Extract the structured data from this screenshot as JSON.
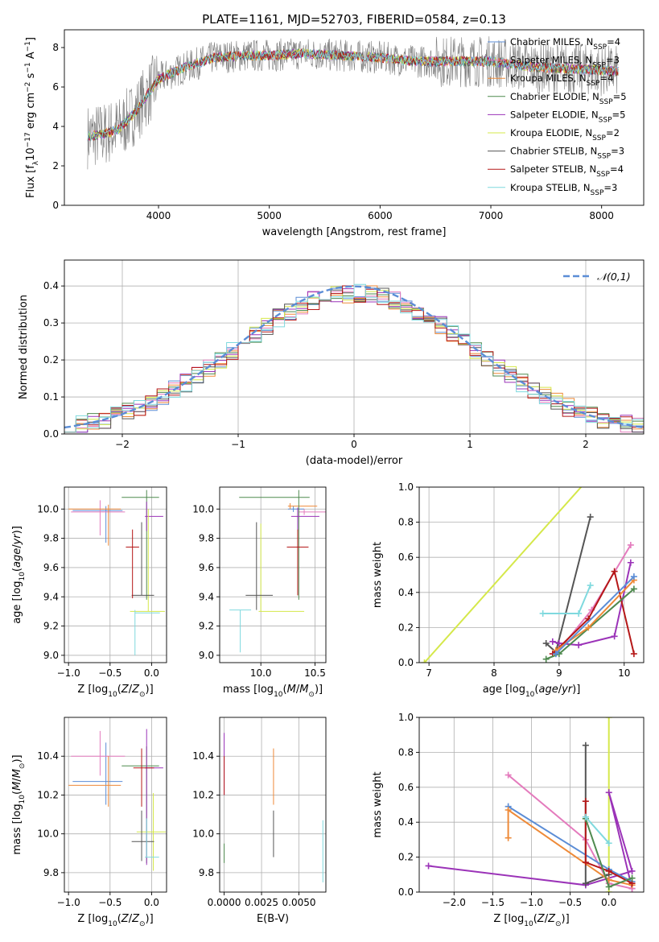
{
  "title": "PLATE=1161, MJD=52703, FIBERID=0584, z=0.13",
  "colors": {
    "Chabrier MILES": "#5b8dd6",
    "Salpeter MILES": "#e47bbd",
    "Kroupa MILES": "#ee8a38",
    "Chabrier ELODIE": "#4f8a4f",
    "Salpeter ELODIE": "#9b33b8",
    "Kroupa ELODIE": "#d5e84a",
    "Chabrier STELIB": "#555555",
    "Salpeter STELIB": "#b51818",
    "Kroupa STELIB": "#7fd9de",
    "normal": "#5b8dd6",
    "grid": "#b0b0b0"
  },
  "chart_data": [
    {
      "type": "line",
      "title": "PLATE=1161, MJD=52703, FIBERID=0584, z=0.13",
      "xlabel": "wavelength [Angstrom, rest frame]",
      "ylabel": "Flux [f_λ10^-17 erg cm^-2 s^-1 A^-1]",
      "xlim": [
        3150,
        8380
      ],
      "ylim": [
        0,
        8.9
      ],
      "xticks": [
        4000,
        5000,
        6000,
        7000,
        8000
      ],
      "yticks": [
        0,
        2,
        4,
        6,
        8
      ],
      "grid": false,
      "legend_position": "right",
      "legend": [
        "Chabrier MILES, N_SSP=4",
        "Salpeter MILES, N_SSP=3",
        "Kroupa MILES, N_SSP=4",
        "Chabrier ELODIE, N_SSP=5",
        "Salpeter ELODIE, N_SSP=5",
        "Kroupa ELODIE, N_SSP=2",
        "Chabrier STELIB, N_SSP=3",
        "Salpeter STELIB, N_SSP=4",
        "Kroupa STELIB, N_SSP=3"
      ],
      "model_continuum": {
        "wavelength": [
          3360,
          3500,
          3650,
          3800,
          4000,
          4200,
          4500,
          4800,
          5000,
          5300,
          5600,
          6000,
          6300,
          6600,
          7000,
          7400,
          7800,
          8150
        ],
        "flux": [
          3.5,
          3.6,
          3.9,
          4.8,
          6.4,
          6.9,
          7.5,
          7.6,
          7.6,
          7.7,
          7.6,
          7.5,
          7.3,
          7.3,
          7.3,
          7.0,
          6.9,
          6.8
        ]
      },
      "data_noise_amplitude": 1.2
    },
    {
      "type": "line",
      "xlabel": "(data-model)/error",
      "ylabel": "Normed distribution",
      "xlim": [
        -2.5,
        2.5
      ],
      "ylim": [
        0,
        0.47
      ],
      "xticks": [
        -2,
        -1,
        0,
        1,
        2
      ],
      "yticks": [
        0.0,
        0.1,
        0.2,
        0.3,
        0.4
      ],
      "grid": true,
      "legend": [
        "𝒩(0,1)"
      ],
      "legend_position": "top-right",
      "reference": "standard normal pdf",
      "histogram_bins": {
        "start": -2.5,
        "width": 0.1,
        "count": 50
      }
    },
    {
      "type": "scatter",
      "xlabel": "Z [log10(Z/Z☉)]",
      "ylabel": "age  [log10(age/yr)]",
      "xlim": [
        -1.05,
        0.18
      ],
      "ylim": [
        8.95,
        10.15
      ],
      "xticks": [
        -1.0,
        -0.5,
        0.0
      ],
      "yticks": [
        9.0,
        9.2,
        9.4,
        9.6,
        9.8,
        10.0
      ],
      "points": [
        {
          "series": "Chabrier MILES",
          "x": -0.55,
          "xerr": [
            0.4,
            0.2
          ],
          "y": 9.99,
          "yerr": [
            0.22,
            0.03
          ]
        },
        {
          "series": "Salpeter MILES",
          "x": -0.62,
          "xerr": [
            0.35,
            0.3
          ],
          "y": 9.98,
          "yerr": [
            0.16,
            0.08
          ]
        },
        {
          "series": "Kroupa MILES",
          "x": -0.52,
          "xerr": [
            0.48,
            0.15
          ],
          "y": 10.0,
          "yerr": [
            0.25,
            0.03
          ]
        },
        {
          "series": "Chabrier ELODIE",
          "x": -0.06,
          "xerr": [
            0.3,
            0.15
          ],
          "y": 10.08,
          "yerr": [
            0.7,
            0.05
          ]
        },
        {
          "series": "Salpeter ELODIE",
          "x": -0.06,
          "xerr": [
            0.02,
            0.2
          ],
          "y": 9.95,
          "yerr": [
            0.1,
            0.1
          ]
        },
        {
          "series": "Kroupa ELODIE",
          "x": -0.04,
          "xerr": [
            0.22,
            0.2
          ],
          "y": 9.3,
          "yerr": [
            0.0,
            0.7
          ]
        },
        {
          "series": "Chabrier STELIB",
          "x": -0.12,
          "xerr": [
            0.12,
            0.15
          ],
          "y": 9.41,
          "yerr": [
            0.0,
            0.5
          ]
        },
        {
          "series": "Salpeter STELIB",
          "x": -0.23,
          "xerr": [
            0.08,
            0.08
          ],
          "y": 9.74,
          "yerr": [
            0.35,
            0.12
          ]
        },
        {
          "series": "Kroupa STELIB",
          "x": -0.2,
          "xerr": [
            0.0,
            0.3
          ],
          "y": 9.29,
          "yerr": [
            0.29,
            0.02
          ]
        }
      ]
    },
    {
      "type": "scatter",
      "xlabel": "mass [log10(M/M☉)]",
      "xlim": [
        9.62,
        10.6
      ],
      "ylim": [
        8.95,
        10.15
      ],
      "xticks": [
        10.0,
        10.5
      ],
      "yticks": [
        9.0,
        9.2,
        9.4,
        9.6,
        9.8,
        10.0
      ],
      "points": [
        {
          "series": "Chabrier MILES",
          "x": 10.3,
          "xerr": [
            0.05,
            0.1
          ],
          "y": 10.0,
          "yerr": [
            0.02,
            0.02
          ]
        },
        {
          "series": "Salpeter MILES",
          "x": 10.4,
          "xerr": [
            0.05,
            0.2
          ],
          "y": 9.98,
          "yerr": [
            0.02,
            0.02
          ]
        },
        {
          "series": "Kroupa MILES",
          "x": 10.27,
          "xerr": [
            0.02,
            0.25
          ],
          "y": 10.02,
          "yerr": [
            0.02,
            0.02
          ]
        },
        {
          "series": "Chabrier ELODIE",
          "x": 10.35,
          "xerr": [
            0.55,
            0.1
          ],
          "y": 10.08,
          "yerr": [
            0.7,
            0.05
          ]
        },
        {
          "series": "Salpeter ELODIE",
          "x": 10.34,
          "xerr": [
            0.06,
            0.2
          ],
          "y": 9.95,
          "yerr": [
            0.1,
            0.06
          ]
        },
        {
          "series": "Kroupa ELODIE",
          "x": 10.0,
          "xerr": [
            0.02,
            0.4
          ],
          "y": 9.3,
          "yerr": [
            0.0,
            0.6
          ]
        },
        {
          "series": "Chabrier STELIB",
          "x": 9.96,
          "xerr": [
            0.1,
            0.15
          ],
          "y": 9.41,
          "yerr": [
            0.1,
            0.5
          ]
        },
        {
          "series": "Salpeter STELIB",
          "x": 10.34,
          "xerr": [
            0.1,
            0.1
          ],
          "y": 9.74,
          "yerr": [
            0.33,
            0.12
          ]
        },
        {
          "series": "Kroupa STELIB",
          "x": 9.81,
          "xerr": [
            0.1,
            0.1
          ],
          "y": 9.31,
          "yerr": [
            0.29,
            0.0
          ]
        }
      ]
    },
    {
      "type": "line",
      "xlabel": "age  [log10(age/yr)]",
      "ylabel": "mass weight",
      "xlim": [
        6.85,
        10.3
      ],
      "ylim": [
        0,
        1.0
      ],
      "xticks": [
        7,
        8,
        9,
        10
      ],
      "yticks": [
        0.0,
        0.2,
        0.4,
        0.6,
        0.8,
        1.0
      ],
      "grid": true,
      "series": [
        {
          "name": "Kroupa ELODIE",
          "points": [
            [
              6.93,
              0.0
            ],
            [
              10.3,
              1.4
            ]
          ]
        },
        {
          "name": "Chabrier STELIB",
          "points": [
            [
              8.8,
              0.11
            ],
            [
              8.95,
              0.06
            ],
            [
              9.48,
              0.83
            ]
          ]
        },
        {
          "name": "Salpeter MILES",
          "points": [
            [
              8.95,
              0.05
            ],
            [
              9.5,
              0.3
            ],
            [
              10.1,
              0.67
            ]
          ]
        },
        {
          "name": "Kroupa STELIB",
          "points": [
            [
              8.75,
              0.28
            ],
            [
              9.3,
              0.28
            ],
            [
              9.48,
              0.44
            ]
          ]
        },
        {
          "name": "Salpeter ELODIE",
          "points": [
            [
              8.9,
              0.12
            ],
            [
              9.0,
              0.11
            ],
            [
              9.3,
              0.1
            ],
            [
              9.85,
              0.15
            ],
            [
              10.1,
              0.57
            ]
          ]
        },
        {
          "name": "Salpeter STELIB",
          "points": [
            [
              8.9,
              0.05
            ],
            [
              9.45,
              0.25
            ],
            [
              9.85,
              0.52
            ],
            [
              10.15,
              0.05
            ]
          ]
        },
        {
          "name": "Chabrier ELODIE",
          "points": [
            [
              8.8,
              0.02
            ],
            [
              9.0,
              0.05
            ],
            [
              10.15,
              0.42
            ]
          ]
        },
        {
          "name": "Kroupa MILES",
          "points": [
            [
              8.95,
              0.07
            ],
            [
              9.45,
              0.2
            ],
            [
              10.15,
              0.47
            ]
          ]
        },
        {
          "name": "Chabrier MILES",
          "points": [
            [
              8.95,
              0.05
            ],
            [
              10.15,
              0.49
            ]
          ]
        }
      ]
    },
    {
      "type": "scatter",
      "xlabel": "Z [log10(Z/Z☉)]",
      "ylabel": "mass [log10(M/M☉)]",
      "xlim": [
        -1.05,
        0.18
      ],
      "ylim": [
        9.7,
        10.6
      ],
      "xticks": [
        -1.0,
        -0.5,
        0.0
      ],
      "yticks": [
        9.8,
        10.0,
        10.2,
        10.4
      ],
      "points": [
        {
          "series": "Chabrier MILES",
          "x": -0.55,
          "xerr": [
            0.4,
            0.2
          ],
          "y": 10.27,
          "yerr": [
            0.12,
            0.2
          ]
        },
        {
          "series": "Salpeter MILES",
          "x": -0.62,
          "xerr": [
            0.35,
            0.3
          ],
          "y": 10.4,
          "yerr": [
            0.1,
            0.13
          ]
        },
        {
          "series": "Kroupa MILES",
          "x": -0.52,
          "xerr": [
            0.48,
            0.15
          ],
          "y": 10.25,
          "yerr": [
            0.11,
            0.15
          ]
        },
        {
          "series": "Chabrier ELODIE",
          "x": -0.06,
          "xerr": [
            0.3,
            0.15
          ],
          "y": 10.35,
          "yerr": [
            0.5,
            0.1
          ]
        },
        {
          "series": "Salpeter ELODIE",
          "x": -0.06,
          "xerr": [
            0.02,
            0.2
          ],
          "y": 10.34,
          "yerr": [
            0.5,
            0.2
          ]
        },
        {
          "series": "Kroupa ELODIE",
          "x": 0.02,
          "xerr": [
            0.2,
            0.15
          ],
          "y": 10.01,
          "yerr": [
            0.2,
            0.2
          ]
        },
        {
          "series": "Chabrier STELIB",
          "x": -0.12,
          "xerr": [
            0.12,
            0.15
          ],
          "y": 9.96,
          "yerr": [
            0.1,
            0.16
          ]
        },
        {
          "series": "Salpeter STELIB",
          "x": -0.12,
          "xerr": [
            0.1,
            0.15
          ],
          "y": 10.34,
          "yerr": [
            0.2,
            0.1
          ]
        },
        {
          "series": "Kroupa STELIB",
          "x": -0.06,
          "xerr": [
            0.02,
            0.15
          ],
          "y": 9.88,
          "yerr": [
            0.0,
            0.2
          ]
        }
      ]
    },
    {
      "type": "scatter",
      "xlabel": "E(B-V)",
      "xlim": [
        -0.0003,
        0.0068
      ],
      "ylim": [
        9.7,
        10.6
      ],
      "xticks": [
        0.0,
        0.0025,
        0.005
      ],
      "xticklabels": [
        "0.0000",
        "0.0025",
        "0.0050"
      ],
      "yticks": [
        9.8,
        10.0,
        10.2,
        10.4
      ],
      "points": [
        {
          "series": "Salpeter ELODIE",
          "x": 0.0,
          "y": 10.4,
          "yerr": [
            0.2,
            0.12
          ]
        },
        {
          "series": "Salpeter STELIB",
          "x": 0.0,
          "y": 10.3,
          "yerr": [
            0.1,
            0.1
          ]
        },
        {
          "series": "Chabrier ELODIE",
          "x": 0.0,
          "y": 9.9,
          "yerr": [
            0.05,
            0.05
          ]
        },
        {
          "series": "Kroupa MILES",
          "x": 0.0033,
          "y": 10.3,
          "yerr": [
            0.15,
            0.14
          ]
        },
        {
          "series": "Chabrier STELIB",
          "x": 0.0033,
          "y": 10.0,
          "yerr": [
            0.12,
            0.12
          ]
        },
        {
          "series": "Kroupa STELIB",
          "x": 0.0066,
          "y": 9.9,
          "yerr": [
            0.15,
            0.17
          ]
        }
      ]
    },
    {
      "type": "line",
      "xlabel": "Z [log10(Z/Z☉)]",
      "ylabel": "mass weight",
      "xlim": [
        -2.45,
        0.45
      ],
      "ylim": [
        0,
        1.0
      ],
      "xticks": [
        -2.0,
        -1.5,
        -1.0,
        -0.5,
        0.0
      ],
      "yticks": [
        0.0,
        0.2,
        0.4,
        0.6,
        0.8,
        1.0
      ],
      "grid": true,
      "series": [
        {
          "name": "Kroupa ELODIE",
          "points": [
            [
              0.0,
              0.0
            ],
            [
              0.0,
              1.0
            ]
          ]
        },
        {
          "name": "Salpeter ELODIE",
          "points": [
            [
              -2.33,
              0.15
            ],
            [
              -0.3,
              0.04
            ],
            [
              0.3,
              0.12
            ],
            [
              0.0,
              0.57
            ],
            [
              0.3,
              0.02
            ]
          ]
        },
        {
          "name": "Chabrier STELIB",
          "points": [
            [
              -0.3,
              0.84
            ],
            [
              -0.3,
              0.05
            ],
            [
              0.0,
              0.1
            ]
          ]
        },
        {
          "name": "Salpeter MILES",
          "points": [
            [
              -1.3,
              0.67
            ],
            [
              -0.3,
              0.3
            ],
            [
              0.0,
              0.05
            ],
            [
              0.3,
              0.02
            ]
          ]
        },
        {
          "name": "Chabrier MILES",
          "points": [
            [
              -1.3,
              0.49
            ],
            [
              0.0,
              0.13
            ],
            [
              0.3,
              0.06
            ]
          ]
        },
        {
          "name": "Kroupa MILES",
          "points": [
            [
              -1.3,
              0.31
            ],
            [
              -1.3,
              0.47
            ],
            [
              0.0,
              0.07
            ],
            [
              0.3,
              0.04
            ]
          ]
        },
        {
          "name": "Salpeter STELIB",
          "points": [
            [
              -0.3,
              0.52
            ],
            [
              -0.3,
              0.17
            ],
            [
              0.0,
              0.12
            ],
            [
              0.3,
              0.05
            ]
          ]
        },
        {
          "name": "Chabrier ELODIE",
          "points": [
            [
              -0.3,
              0.42
            ],
            [
              0.0,
              0.03
            ],
            [
              0.3,
              0.08
            ]
          ]
        },
        {
          "name": "Kroupa STELIB",
          "points": [
            [
              -0.3,
              0.43
            ],
            [
              0.0,
              0.28
            ]
          ]
        }
      ]
    }
  ]
}
